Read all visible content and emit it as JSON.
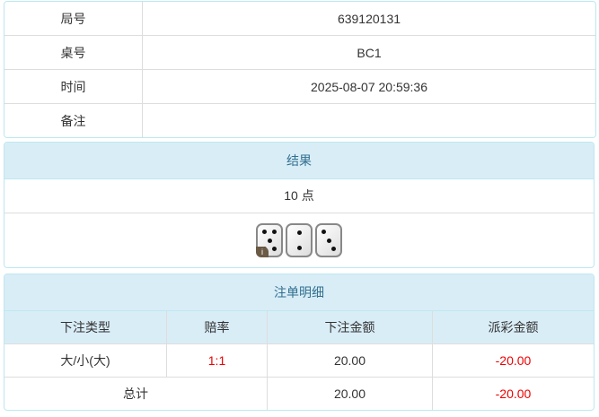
{
  "info": {
    "rows": [
      {
        "label": "局号",
        "value": "639120131"
      },
      {
        "label": "桌号",
        "value": "BC1"
      },
      {
        "label": "时间",
        "value": "2025-08-07 20:59:36"
      },
      {
        "label": "备注",
        "value": ""
      }
    ]
  },
  "result": {
    "title": "结果",
    "points": "10 点",
    "dice": [
      5,
      2,
      3
    ],
    "info_badge": "i"
  },
  "bets": {
    "title": "注单明细",
    "headers": [
      "下注类型",
      "赔率",
      "下注金额",
      "派彩金额"
    ],
    "rows": [
      {
        "type": "大/小(大)",
        "odds": "1:1",
        "amount": "20.00",
        "payout": "-20.00"
      }
    ],
    "total": {
      "label": "总计",
      "amount": "20.00",
      "payout": "-20.00"
    },
    "colors": {
      "negative": "#e00000",
      "header_bg": "#d9edf7"
    }
  }
}
